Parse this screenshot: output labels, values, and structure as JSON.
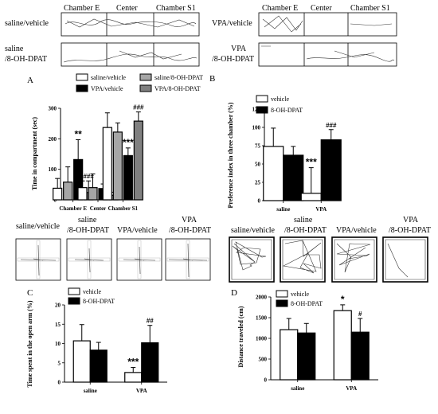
{
  "top_panels": {
    "left_labels": [
      "saline/vehicle",
      "saline",
      "/8-OH-DPAT"
    ],
    "right_labels": [
      "VPA/vehicle",
      "VPA",
      "/8-OH-DPAT"
    ],
    "chamber_labels": [
      "Chamber E",
      "Center",
      "Chamber S1"
    ]
  },
  "maze_panels": {
    "plus_maze_labels": [
      "saline/vehicle",
      "saline",
      "/8-OH-DPAT",
      "VPA/vehicle",
      "VPA",
      "/8-OH-DPAT"
    ],
    "open_field_labels": [
      "saline/vehicle",
      "saline",
      "/8-OH-DPAT",
      "VPA/vehicle",
      "VPA",
      "/8-OH-DPAT"
    ]
  },
  "chart_data": [
    {
      "panel": "A",
      "type": "bar",
      "ylabel": "Time in compartment (sec)",
      "ylim": [
        0,
        300
      ],
      "yticks": [
        0,
        100,
        200,
        300
      ],
      "categories": [
        "Chamber E",
        "Center",
        "Chamber S1"
      ],
      "legend": [
        "saline/vehicle",
        "saline/8-OH-DPAT",
        "VPA/vehicle",
        "VPA/8-OH-DPAT"
      ],
      "colors": [
        "#ffffff",
        "#a6a6a6",
        "#000000",
        "#808080"
      ],
      "series": [
        {
          "name": "saline/vehicle",
          "values": [
            38,
            40,
            237
          ],
          "err": [
            32,
            22,
            48
          ]
        },
        {
          "name": "saline/8-OH-DPAT",
          "values": [
            58,
            40,
            222
          ],
          "err": [
            50,
            45,
            30
          ]
        },
        {
          "name": "VPA/vehicle",
          "values": [
            132,
            37,
            145
          ],
          "err": [
            65,
            15,
            25
          ]
        },
        {
          "name": "VPA/8-OH-DPAT",
          "values": [
            24,
            15,
            258
          ],
          "err": [
            38,
            10,
            30
          ]
        }
      ],
      "annotations": [
        {
          "series": 2,
          "cat": 0,
          "text": "**"
        },
        {
          "series": 3,
          "cat": 0,
          "text": "###"
        },
        {
          "series": 2,
          "cat": 2,
          "text": "***"
        },
        {
          "series": 3,
          "cat": 2,
          "text": "###"
        }
      ]
    },
    {
      "panel": "B",
      "type": "bar",
      "ylabel": "Preference index in three chamber (%)",
      "ylim": [
        0,
        125
      ],
      "yticks": [
        0,
        25,
        50,
        75,
        100,
        125
      ],
      "categories": [
        "saline",
        "VPA"
      ],
      "legend": [
        "vehicle",
        "8-OH-DPAT"
      ],
      "colors": [
        "#ffffff",
        "#000000"
      ],
      "series": [
        {
          "name": "vehicle",
          "values": [
            74,
            10
          ],
          "err": [
            25,
            35
          ]
        },
        {
          "name": "8-OH-DPAT",
          "values": [
            62,
            83
          ],
          "err": [
            12,
            14
          ]
        }
      ],
      "annotations": [
        {
          "series": 0,
          "cat": 1,
          "text": "***"
        },
        {
          "series": 1,
          "cat": 1,
          "text": "###"
        }
      ]
    },
    {
      "panel": "C",
      "type": "bar",
      "ylabel": "Time spent in the open arm (%)",
      "ylim": [
        0,
        20
      ],
      "yticks": [
        0,
        5,
        10,
        15,
        20
      ],
      "categories": [
        "saline",
        "VPA"
      ],
      "legend": [
        "vehicle",
        "8-OH-DPAT"
      ],
      "colors": [
        "#ffffff",
        "#000000"
      ],
      "series": [
        {
          "name": "vehicle",
          "values": [
            10.7,
            2.5
          ],
          "err": [
            4.2,
            1.3
          ]
        },
        {
          "name": "8-OH-DPAT",
          "values": [
            8.3,
            10.2
          ],
          "err": [
            2.0,
            4.5
          ]
        }
      ],
      "annotations": [
        {
          "series": 0,
          "cat": 1,
          "text": "***"
        },
        {
          "series": 1,
          "cat": 1,
          "text": "##"
        }
      ]
    },
    {
      "panel": "D",
      "type": "bar",
      "ylabel": "Distance traveled (cm)",
      "ylim": [
        0,
        2000
      ],
      "yticks": [
        0,
        500,
        1000,
        1500,
        2000
      ],
      "categories": [
        "saline",
        "VPA"
      ],
      "legend": [
        "vehicle",
        "8-OH-DPAT"
      ],
      "colors": [
        "#ffffff",
        "#000000"
      ],
      "series": [
        {
          "name": "vehicle",
          "values": [
            1210,
            1670
          ],
          "err": [
            270,
            140
          ]
        },
        {
          "name": "8-OH-DPAT",
          "values": [
            1130,
            1150
          ],
          "err": [
            230,
            330
          ]
        }
      ],
      "annotations": [
        {
          "series": 0,
          "cat": 1,
          "text": "*"
        },
        {
          "series": 1,
          "cat": 1,
          "text": "#"
        }
      ]
    }
  ]
}
